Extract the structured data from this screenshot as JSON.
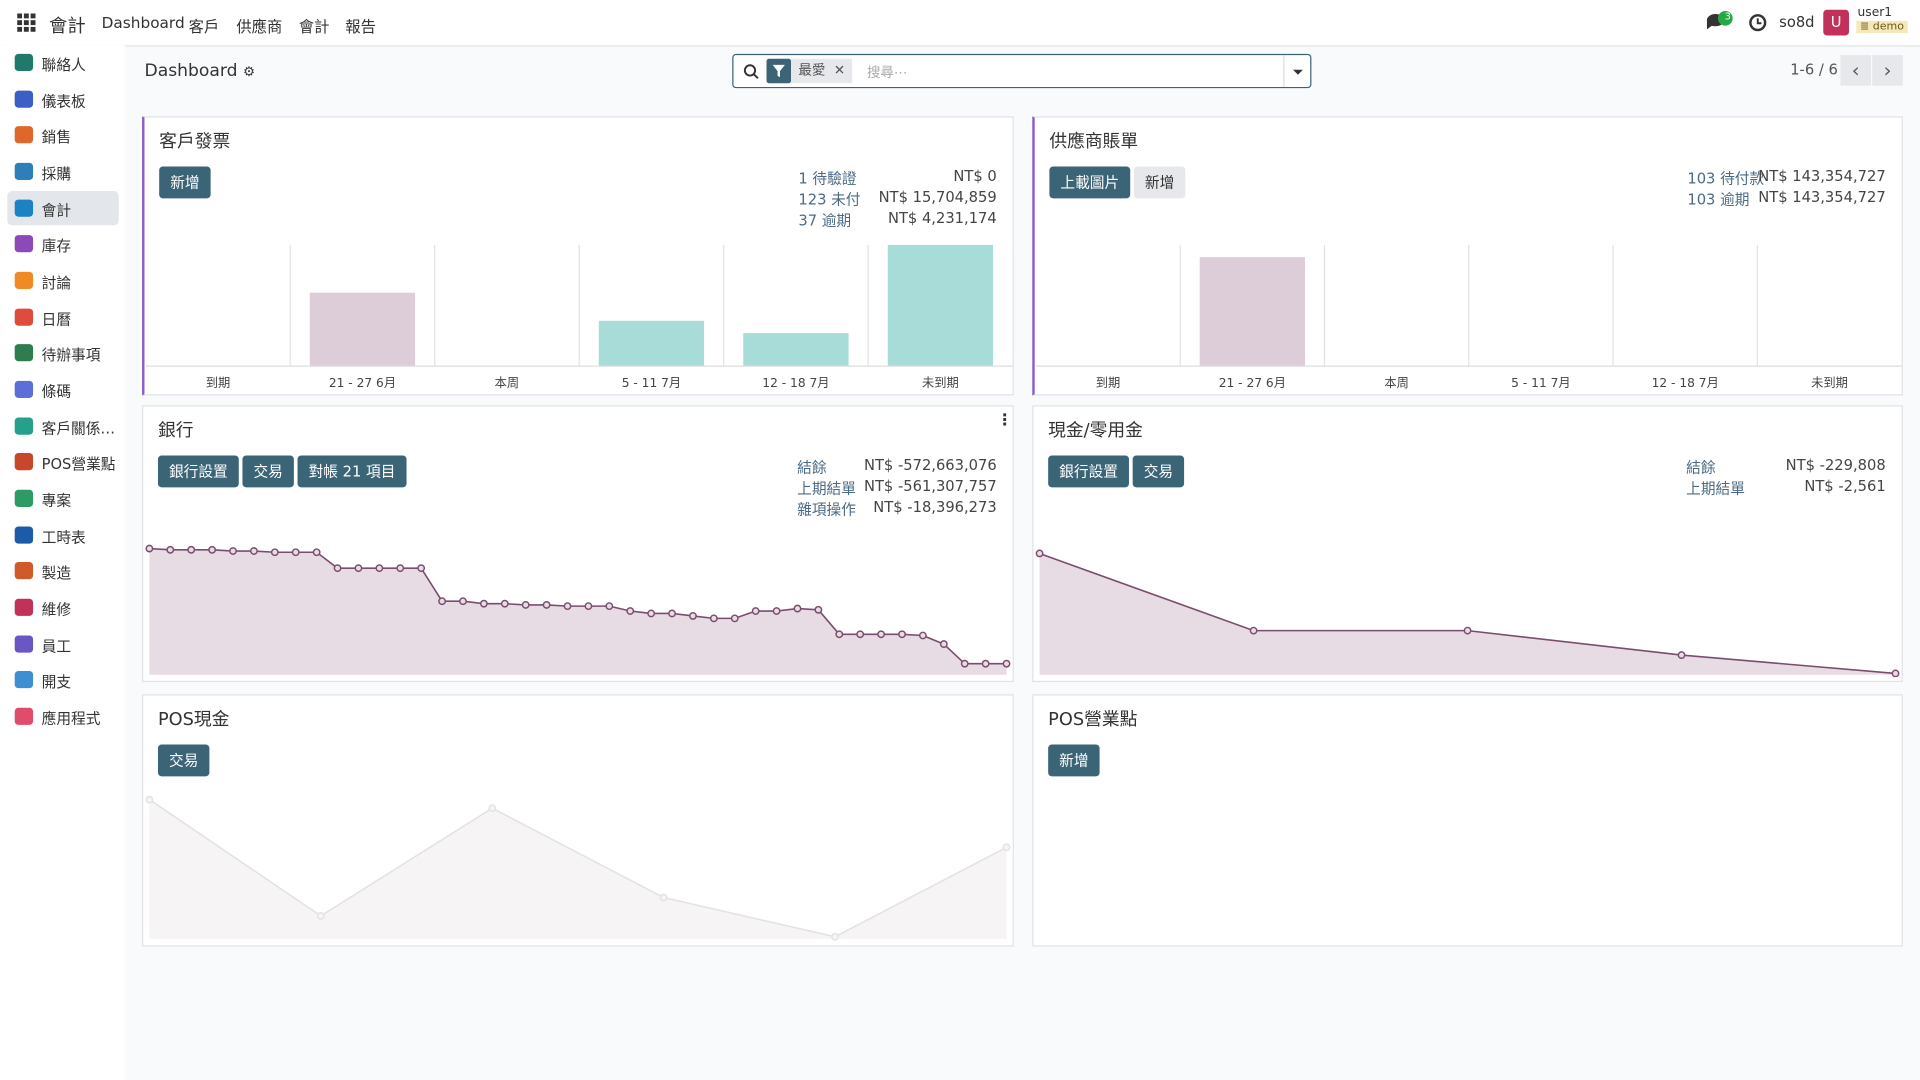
{
  "navbar": {
    "app": "會計",
    "menus": [
      "Dashboard",
      "客戶",
      "供應商",
      "會計",
      "報告"
    ],
    "messages_badge": "3",
    "company": "so8d",
    "user_initial": "U",
    "user": "user1",
    "db": "demo"
  },
  "sidebar": [
    "聯絡人",
    "儀表板",
    "銷售",
    "採購",
    "會計",
    "庫存",
    "討論",
    "日曆",
    "待辦事項",
    "條碼",
    "客戶關係…",
    "POS營業點",
    "專案",
    "工時表",
    "製造",
    "維修",
    "員工",
    "開支",
    "應用程式"
  ],
  "control": {
    "breadcrumb": "Dashboard",
    "facet": "最愛",
    "search_placeholder": "搜尋⋯",
    "pager": "1-6 / 6"
  },
  "cards": [
    {
      "title": "客戶發票",
      "buttons": [
        "新增"
      ],
      "stats": [
        {
          "label": "1 待驗證",
          "value": "NT$ 0"
        },
        {
          "label": "123 未付",
          "value": "NT$ 15,704,859"
        },
        {
          "label": "37 逾期",
          "value": "NT$ 4,231,174"
        }
      ],
      "chart": {
        "type": "bar",
        "categories": [
          "到期",
          "21 - 27 6月",
          "本周",
          "5 - 11 7月",
          "12 - 18 7月",
          "未到期"
        ],
        "values": [
          0,
          60,
          0,
          37,
          27,
          99
        ],
        "colors": [
          "#a8dcd8",
          "#dccdd8",
          "#a8dcd8",
          "#a8dcd8",
          "#a8dcd8",
          "#a8dcd8"
        ]
      }
    },
    {
      "title": "供應商賬單",
      "buttons": [
        "上載圖片",
        "新增"
      ],
      "stats": [
        {
          "label": "103 待付款",
          "value": "NT$ 143,354,727"
        },
        {
          "label": "103 逾期",
          "value": "NT$ 143,354,727"
        }
      ],
      "chart": {
        "type": "bar",
        "categories": [
          "到期",
          "21 - 27 6月",
          "本周",
          "5 - 11 7月",
          "12 - 18 7月",
          "未到期"
        ],
        "values": [
          0,
          89,
          0,
          0,
          0,
          0
        ],
        "colors": [
          "#a8dcd8",
          "#dccdd8",
          "#a8dcd8",
          "#a8dcd8",
          "#a8dcd8",
          "#a8dcd8"
        ]
      }
    },
    {
      "title": "銀行",
      "buttons": [
        "銀行設置",
        "交易",
        "對帳 21 項目"
      ],
      "stats": [
        {
          "label": "結餘",
          "value": "NT$ -572,663,076"
        },
        {
          "label": "上期結單",
          "value": "NT$ -561,307,757"
        },
        {
          "label": "雜項操作",
          "value": "NT$ -18,396,273"
        }
      ],
      "chart": {
        "type": "line",
        "color": "#7a4d6e",
        "fill": "#e8dce4",
        "values": [
          103,
          102,
          102,
          102,
          101,
          101,
          100,
          100,
          100,
          87,
          87,
          87,
          87,
          87,
          60,
          60,
          58,
          58,
          57,
          57,
          56,
          56,
          56,
          52,
          50,
          50,
          48,
          46,
          46,
          52,
          52,
          54,
          53,
          33,
          33,
          33,
          33,
          32,
          25,
          9,
          9,
          9
        ]
      }
    },
    {
      "title": "現金/零用金",
      "buttons": [
        "銀行設置",
        "交易"
      ],
      "stats": [
        {
          "label": "結餘",
          "value": "NT$ -229,808"
        },
        {
          "label": "上期結單",
          "value": "NT$ -2,561"
        }
      ],
      "chart": {
        "type": "line",
        "color": "#7a4d6e",
        "fill": "#e8dce4",
        "values": [
          99,
          36,
          36,
          16,
          1
        ]
      }
    },
    {
      "title": "POS現金",
      "buttons": [
        "交易"
      ],
      "stats": [],
      "chart": {
        "type": "line",
        "color": "#e3e3e3",
        "fill": "#f7f4f6",
        "values": [
          114,
          19,
          107,
          34,
          2,
          75
        ]
      }
    },
    {
      "title": "POS營業點",
      "buttons": [
        "新增"
      ],
      "stats": []
    }
  ]
}
